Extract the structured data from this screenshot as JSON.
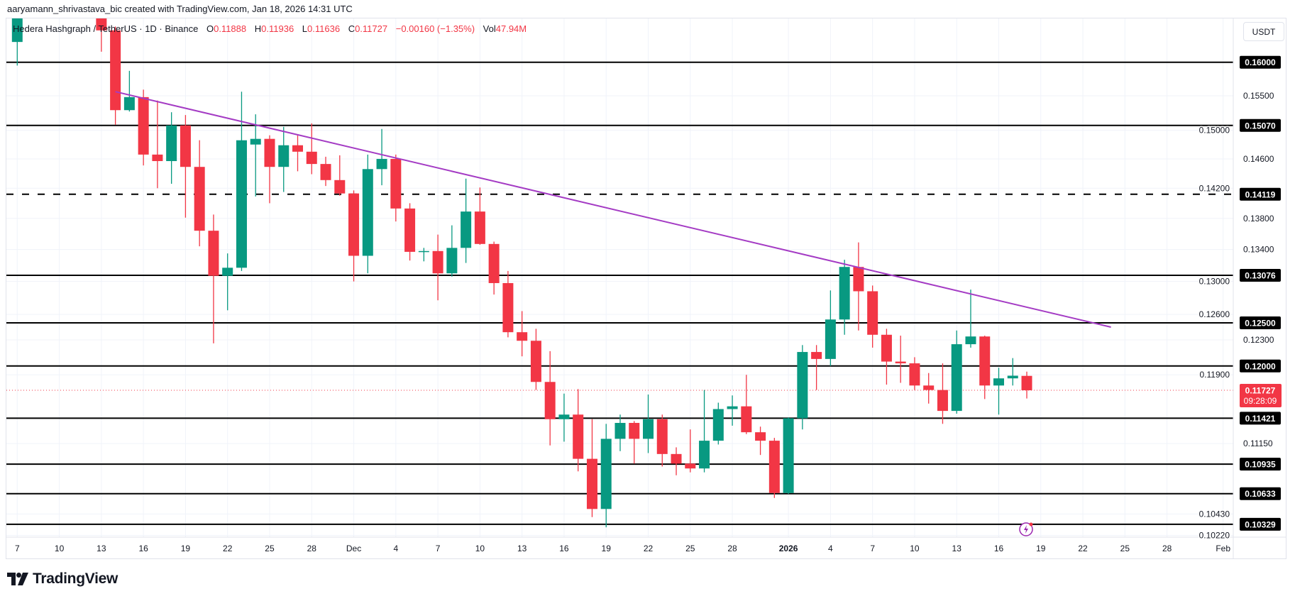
{
  "header": {
    "credit": "aaryamann_shrivastava_bic created with TradingView.com, Jan 18, 2026 14:31 UTC"
  },
  "legend": {
    "symbol": "Hedera Hashgraph / TetherUS · 1D · Binance",
    "o_label": "O",
    "o": "0.11888",
    "h_label": "H",
    "h": "0.11936",
    "l_label": "L",
    "l": "0.11636",
    "c_label": "C",
    "c": "0.11727",
    "change": "−0.00160 (−1.35%)",
    "vol_label": "Vol",
    "vol": "47.94M"
  },
  "currency_button": "USDT",
  "countdown": "09:28:09",
  "logo": "TradingView",
  "colors": {
    "up": "#089981",
    "down": "#F23645",
    "trendline": "#A43BC4",
    "levels": "#000000",
    "last_price": "#F23645"
  },
  "chart_data": {
    "type": "candlestick",
    "interval": "1D",
    "y_scale": "log",
    "ylim": [
      0.1022,
      0.1667
    ],
    "grid": true,
    "y_ticks": [
      "0.15500",
      "0.15000",
      "0.14600",
      "0.14200",
      "0.13800",
      "0.13400",
      "0.13000",
      "0.12600",
      "0.12300",
      "0.11900",
      "0.11150",
      "0.10430",
      "0.10220"
    ],
    "x_ticks": [
      {
        "date": "2025-11-07",
        "label": "7"
      },
      {
        "date": "2025-11-10",
        "label": "10"
      },
      {
        "date": "2025-11-13",
        "label": "13"
      },
      {
        "date": "2025-11-16",
        "label": "16"
      },
      {
        "date": "2025-11-19",
        "label": "19"
      },
      {
        "date": "2025-11-22",
        "label": "22"
      },
      {
        "date": "2025-11-25",
        "label": "25"
      },
      {
        "date": "2025-11-28",
        "label": "28"
      },
      {
        "date": "2025-12-01",
        "label": "Dec"
      },
      {
        "date": "2025-12-04",
        "label": "4"
      },
      {
        "date": "2025-12-07",
        "label": "7"
      },
      {
        "date": "2025-12-10",
        "label": "10"
      },
      {
        "date": "2025-12-13",
        "label": "13"
      },
      {
        "date": "2025-12-16",
        "label": "16"
      },
      {
        "date": "2025-12-19",
        "label": "19"
      },
      {
        "date": "2025-12-22",
        "label": "22"
      },
      {
        "date": "2025-12-25",
        "label": "25"
      },
      {
        "date": "2025-12-28",
        "label": "28"
      },
      {
        "date": "2026-01-01",
        "label": "2026"
      },
      {
        "date": "2026-01-04",
        "label": "4"
      },
      {
        "date": "2026-01-07",
        "label": "7"
      },
      {
        "date": "2026-01-10",
        "label": "10"
      },
      {
        "date": "2026-01-13",
        "label": "13"
      },
      {
        "date": "2026-01-16",
        "label": "16"
      },
      {
        "date": "2026-01-19",
        "label": "19"
      },
      {
        "date": "2026-01-22",
        "label": "22"
      },
      {
        "date": "2026-01-25",
        "label": "25"
      },
      {
        "date": "2026-01-28",
        "label": "28"
      },
      {
        "date": "2026-02-01",
        "label": "Feb"
      }
    ],
    "candles": [
      [
        "2025-11-07",
        0.1631,
        0.17,
        0.1595,
        0.169
      ],
      [
        "2025-11-13",
        0.175,
        0.178,
        0.1616,
        0.1649
      ],
      [
        "2025-11-14",
        0.1649,
        0.1655,
        0.1508,
        0.1529
      ],
      [
        "2025-11-15",
        0.1529,
        0.1587,
        0.1527,
        0.1548
      ],
      [
        "2025-11-16",
        0.1548,
        0.1559,
        0.1451,
        0.1466
      ],
      [
        "2025-11-17",
        0.1466,
        0.1543,
        0.142,
        0.1457
      ],
      [
        "2025-11-18",
        0.1457,
        0.1526,
        0.1426,
        0.1507
      ],
      [
        "2025-11-19",
        0.1507,
        0.1522,
        0.1381,
        0.1449
      ],
      [
        "2025-11-20",
        0.1449,
        0.1486,
        0.1344,
        0.1364
      ],
      [
        "2025-11-21",
        0.1364,
        0.1385,
        0.1226,
        0.1307
      ],
      [
        "2025-11-22",
        0.1307,
        0.1335,
        0.1265,
        0.1317
      ],
      [
        "2025-11-23",
        0.1317,
        0.1556,
        0.1313,
        0.1486
      ],
      [
        "2025-11-24",
        0.148,
        0.1523,
        0.1409,
        0.1488
      ],
      [
        "2025-11-25",
        0.1488,
        0.1493,
        0.14,
        0.1449
      ],
      [
        "2025-11-26",
        0.1449,
        0.1505,
        0.1415,
        0.1479
      ],
      [
        "2025-11-27",
        0.1479,
        0.1494,
        0.1443,
        0.147
      ],
      [
        "2025-11-28",
        0.147,
        0.151,
        0.1439,
        0.1453
      ],
      [
        "2025-11-29",
        0.1453,
        0.1463,
        0.1423,
        0.1431
      ],
      [
        "2025-11-30",
        0.1431,
        0.1465,
        0.141,
        0.1413
      ],
      [
        "2025-12-01",
        0.1413,
        0.1417,
        0.13,
        0.1332
      ],
      [
        "2025-12-02",
        0.1332,
        0.1466,
        0.131,
        0.1446
      ],
      [
        "2025-12-03",
        0.1446,
        0.1502,
        0.1424,
        0.146
      ],
      [
        "2025-12-04",
        0.146,
        0.1466,
        0.1376,
        0.1393
      ],
      [
        "2025-12-05",
        0.1393,
        0.14,
        0.1326,
        0.1337
      ],
      [
        "2025-12-06",
        0.1337,
        0.1342,
        0.1325,
        0.1338
      ],
      [
        "2025-12-07",
        0.1338,
        0.1359,
        0.1277,
        0.131
      ],
      [
        "2025-12-08",
        0.131,
        0.1371,
        0.1306,
        0.1342
      ],
      [
        "2025-12-09",
        0.1342,
        0.1433,
        0.1323,
        0.1389
      ],
      [
        "2025-12-10",
        0.1389,
        0.1421,
        0.1346,
        0.1347
      ],
      [
        "2025-12-11",
        0.1347,
        0.135,
        0.1284,
        0.1298
      ],
      [
        "2025-12-12",
        0.1298,
        0.1313,
        0.1233,
        0.1239
      ],
      [
        "2025-12-13",
        0.1239,
        0.1264,
        0.1211,
        0.1229
      ],
      [
        "2025-12-14",
        0.1229,
        0.1243,
        0.1173,
        0.1182
      ],
      [
        "2025-12-15",
        0.1182,
        0.1217,
        0.1113,
        0.1141
      ],
      [
        "2025-12-16",
        0.1141,
        0.1169,
        0.1117,
        0.1146
      ],
      [
        "2025-12-17",
        0.1146,
        0.1174,
        0.1086,
        0.1099
      ],
      [
        "2025-12-18",
        0.1099,
        0.1141,
        0.104,
        0.1048
      ],
      [
        "2025-12-19",
        0.1048,
        0.1136,
        0.103,
        0.112
      ],
      [
        "2025-12-20",
        0.112,
        0.1146,
        0.1107,
        0.1137
      ],
      [
        "2025-12-21",
        0.1137,
        0.1139,
        0.1094,
        0.112
      ],
      [
        "2025-12-22",
        0.112,
        0.1168,
        0.1105,
        0.1141
      ],
      [
        "2025-12-23",
        0.1141,
        0.1146,
        0.1091,
        0.1104
      ],
      [
        "2025-12-24",
        0.1104,
        0.1111,
        0.1082,
        0.1094
      ],
      [
        "2025-12-25",
        0.1094,
        0.113,
        0.1085,
        0.1089
      ],
      [
        "2025-12-26",
        0.1089,
        0.1173,
        0.1085,
        0.1118
      ],
      [
        "2025-12-27",
        0.1118,
        0.1159,
        0.1114,
        0.1152
      ],
      [
        "2025-12-28",
        0.1152,
        0.1167,
        0.1134,
        0.1155
      ],
      [
        "2025-12-29",
        0.1155,
        0.119,
        0.1125,
        0.1127
      ],
      [
        "2025-12-30",
        0.1127,
        0.1133,
        0.1103,
        0.1118
      ],
      [
        "2025-12-31",
        0.1118,
        0.1121,
        0.1059,
        0.1064
      ],
      [
        "2026-01-01",
        0.1064,
        0.1143,
        0.1063,
        0.1142
      ],
      [
        "2026-01-02",
        0.1142,
        0.1224,
        0.113,
        0.1216
      ],
      [
        "2026-01-03",
        0.1216,
        0.1224,
        0.1173,
        0.1208
      ],
      [
        "2026-01-04",
        0.1208,
        0.1289,
        0.12,
        0.1254
      ],
      [
        "2026-01-05",
        0.1254,
        0.1327,
        0.1236,
        0.1318
      ],
      [
        "2026-01-06",
        0.1318,
        0.1349,
        0.1241,
        0.1288
      ],
      [
        "2026-01-07",
        0.1288,
        0.1295,
        0.1221,
        0.1236
      ],
      [
        "2026-01-08",
        0.1236,
        0.1243,
        0.1179,
        0.1205
      ],
      [
        "2026-01-09",
        0.1205,
        0.1235,
        0.1181,
        0.1203
      ],
      [
        "2026-01-10",
        0.1203,
        0.121,
        0.1173,
        0.1178
      ],
      [
        "2026-01-11",
        0.1178,
        0.1192,
        0.1158,
        0.1173
      ],
      [
        "2026-01-12",
        0.1173,
        0.1203,
        0.1136,
        0.115
      ],
      [
        "2026-01-13",
        0.115,
        0.1241,
        0.1147,
        0.1225
      ],
      [
        "2026-01-14",
        0.1225,
        0.129,
        0.1221,
        0.1234
      ],
      [
        "2026-01-15",
        0.1234,
        0.1235,
        0.1163,
        0.1178
      ],
      [
        "2026-01-16",
        0.1178,
        0.1198,
        0.1146,
        0.1186
      ],
      [
        "2026-01-17",
        0.1186,
        0.1209,
        0.1178,
        0.1189
      ],
      [
        "2026-01-18",
        0.11888,
        0.11936,
        0.11636,
        0.11727
      ]
    ],
    "horizontal_levels": [
      {
        "price": 0.16,
        "label": "0.16000",
        "style": "solid"
      },
      {
        "price": 0.1507,
        "label": "0.15070",
        "style": "solid"
      },
      {
        "price": 0.14119,
        "label": "0.14119",
        "style": "dashed"
      },
      {
        "price": 0.13076,
        "label": "0.13076",
        "style": "solid"
      },
      {
        "price": 0.125,
        "label": "0.12500",
        "style": "solid"
      },
      {
        "price": 0.12,
        "label": "0.12000",
        "style": "solid"
      },
      {
        "price": 0.11421,
        "label": "0.11421",
        "style": "solid"
      },
      {
        "price": 0.10935,
        "label": "0.10935",
        "style": "solid"
      },
      {
        "price": 0.10633,
        "label": "0.10633",
        "style": "solid"
      },
      {
        "price": 0.10329,
        "label": "0.10329",
        "style": "solid"
      }
    ],
    "trendline": {
      "from": {
        "date": "2025-11-14",
        "price": 0.1556
      },
      "to": {
        "date": "2026-01-24",
        "price": 0.1245
      }
    },
    "last_price": {
      "price": 0.11727,
      "label": "0.11727"
    }
  }
}
